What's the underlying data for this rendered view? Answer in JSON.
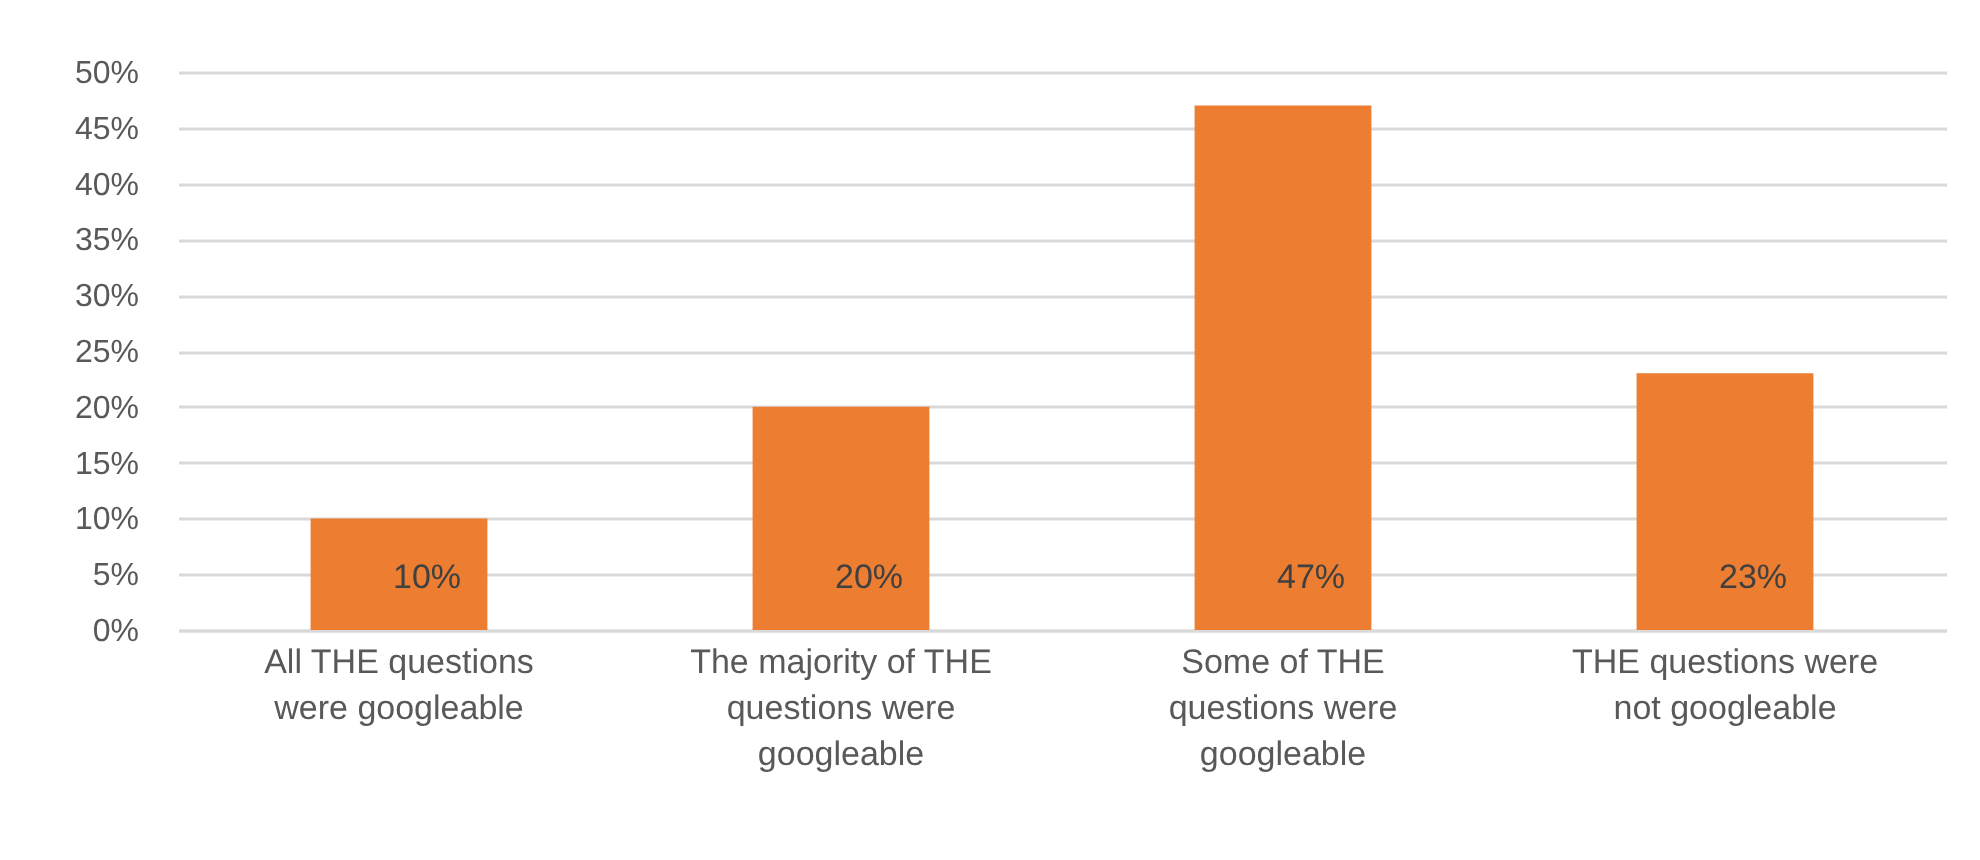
{
  "chart_data": {
    "type": "bar",
    "categories": [
      "All THE questions were googleable",
      "The majority of THE questions were googleable",
      "Some of THE questions were googleable",
      "THE questions were not googleable"
    ],
    "values": [
      10,
      20,
      47,
      23
    ],
    "value_labels": [
      "10%",
      "20%",
      "47%",
      "23%"
    ],
    "color": "#ed7d31",
    "ylim": [
      0,
      50
    ],
    "yticks": [
      {
        "value": 0,
        "label": "0%"
      },
      {
        "value": 5,
        "label": "5%"
      },
      {
        "value": 10,
        "label": "10%"
      },
      {
        "value": 15,
        "label": "15%"
      },
      {
        "value": 20,
        "label": "20%"
      },
      {
        "value": 25,
        "label": "25%"
      },
      {
        "value": 30,
        "label": "30%"
      },
      {
        "value": 35,
        "label": "35%"
      },
      {
        "value": 40,
        "label": "40%"
      },
      {
        "value": 45,
        "label": "45%"
      },
      {
        "value": 50,
        "label": "50%"
      }
    ],
    "grid": "y"
  }
}
